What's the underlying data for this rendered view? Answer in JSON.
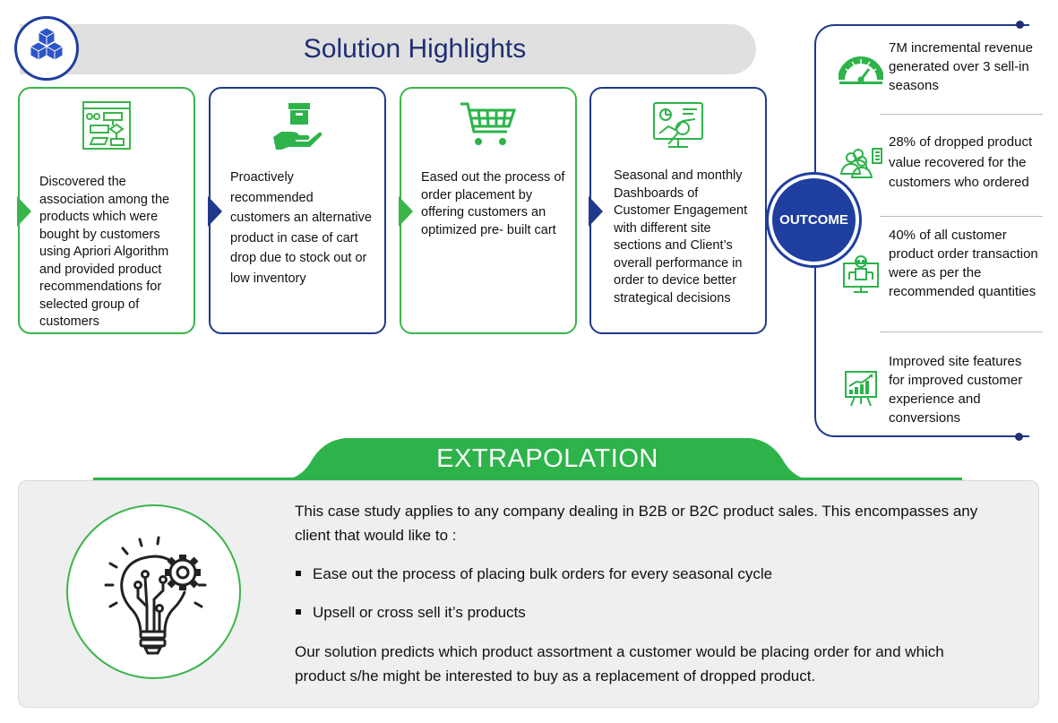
{
  "header": {
    "title": "Solution Highlights",
    "logo_icon": "cubes-icon"
  },
  "cards": [
    {
      "icon": "flowchart-icon",
      "color": "#3ab54a",
      "text": "Discovered the association among the products which were bought by customers using Apriori Algorithm and provided product recommendations for selected group of customers"
    },
    {
      "icon": "hand-box-icon",
      "color": "#1f3a8a",
      "text": "Proactively recommended customers an alternative product in case of cart drop due to stock out or low inventory"
    },
    {
      "icon": "shopping-cart-icon",
      "color": "#3ab54a",
      "text": "Eased out the process of order placement by offering customers an optimized pre- built cart"
    },
    {
      "icon": "dashboard-monitor-icon",
      "color": "#1f3a8a",
      "text": "Seasonal and monthly Dashboards of Customer Engagement with different site sections and Client’s overall performance in order to device better strategical decisions"
    }
  ],
  "outcome": {
    "label": "OUTCOME",
    "items": [
      {
        "icon": "gauge-icon",
        "text": "7M incremental revenue generated over 3 sell-in seasons"
      },
      {
        "icon": "customers-icon",
        "text": "28% of dropped product value recovered for the customers who ordered"
      },
      {
        "icon": "robot-monitor-icon",
        "text": "40% of all customer product order transaction were as per the recommended quantities"
      },
      {
        "icon": "growth-chart-icon",
        "text": "Improved site features for improved customer experience and conversions"
      }
    ]
  },
  "extrapolation": {
    "title": "EXTRAPOLATION",
    "icon": "idea-bulb-gear-icon",
    "intro": "This case study applies to any company dealing in B2B or B2C product sales. This encompasses any client that would like to :",
    "bullets": [
      "Ease out the process of placing bulk orders for every seasonal cycle",
      "Upsell or cross sell it’s products"
    ],
    "conclusion": "Our solution predicts which product assortment a customer would be placing order for and which product s/he might be interested to buy as a replacement of dropped product."
  },
  "colors": {
    "green": "#3ab54a",
    "navy": "#1f3a8a",
    "title_navy": "#1f2f73",
    "grey_bar": "#e0e0e0"
  }
}
